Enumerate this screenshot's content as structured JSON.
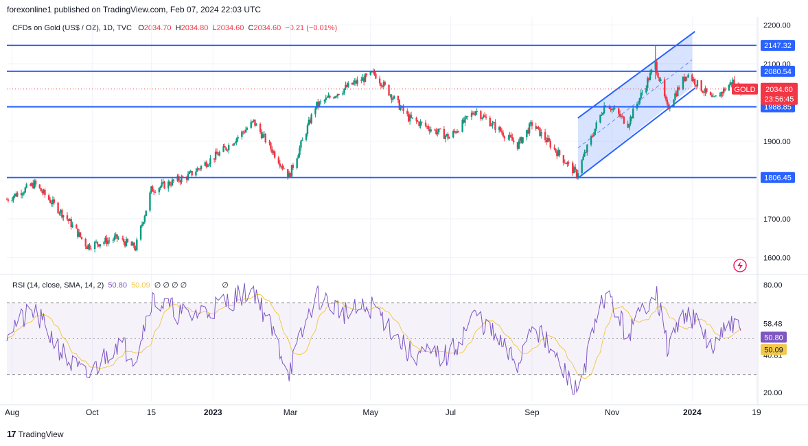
{
  "header": {
    "publisher": "forexonline1 published on TradingView.com, Feb 07, 2024 22:03 UTC"
  },
  "legend": {
    "symbol": "CFDs on Gold (US$ / OZ), 1D, TVC",
    "o_label": "O",
    "o_value": "2034.70",
    "h_label": "H",
    "h_value": "2034.80",
    "l_label": "L",
    "l_value": "2034.60",
    "c_label": "C",
    "c_value": "2034.60",
    "change": "−0.21 (−0.01%)"
  },
  "rsi_legend": {
    "label": "RSI (14, close, SMA, 14, 2)",
    "rsi_value": "50.80",
    "sma_value": "50.09",
    "empty_markers": "∅  ∅  ∅  ∅",
    "marker_single": "∅"
  },
  "price_axis": {
    "ticks": [
      "2200.00",
      "2100.00",
      "1900.00",
      "1700.00",
      "1600.00"
    ],
    "levels": [
      {
        "label": "2147.32",
        "value": 2147.32
      },
      {
        "label": "2080.54",
        "value": 2080.54
      },
      {
        "label": "1988.85",
        "value": 1988.85
      },
      {
        "label": "1806.45",
        "value": 1806.45
      }
    ],
    "gold_tag": "GOLD",
    "last_price": "2034.60",
    "countdown": "23:56:45"
  },
  "rsi_axis": {
    "ticks": [
      "80.00",
      "58.48",
      "40.81",
      "20.00"
    ],
    "rsi_badge": "50.80",
    "sma_badge": "50.09"
  },
  "time_axis": {
    "labels": [
      "Aug",
      "Oct",
      "15",
      "2023",
      "Mar",
      "May",
      "Jul",
      "Sep",
      "Nov",
      "2024",
      "19"
    ]
  },
  "footer": {
    "logo": "17",
    "brand": "TradingView"
  },
  "colors": {
    "up": "#089981",
    "down": "#f23645",
    "level_line": "#2962ff",
    "rsi_line": "#7e57c2",
    "rsi_sma": "#f2c94c",
    "channel_fill": "#2962ff"
  },
  "chart_data": {
    "type": "candlestick",
    "title": "CFDs on Gold (US$ / OZ), 1D, TVC",
    "ylim": [
      1560,
      2220
    ],
    "horizontal_levels": [
      2147.32,
      2080.54,
      1988.85,
      1806.45
    ],
    "last_close": 2034.6,
    "price_path": [
      {
        "date": "2022-07-28",
        "close": 1750
      },
      {
        "date": "2022-08-18",
        "close": 1790
      },
      {
        "date": "2022-09-12",
        "close": 1700
      },
      {
        "date": "2022-09-27",
        "close": 1630
      },
      {
        "date": "2022-10-20",
        "close": 1650
      },
      {
        "date": "2022-11-03",
        "close": 1625
      },
      {
        "date": "2022-11-15",
        "close": 1775
      },
      {
        "date": "2022-12-13",
        "close": 1810
      },
      {
        "date": "2023-01-10",
        "close": 1880
      },
      {
        "date": "2023-02-01",
        "close": 1950
      },
      {
        "date": "2023-02-28",
        "close": 1810
      },
      {
        "date": "2023-03-20",
        "close": 1990
      },
      {
        "date": "2023-04-13",
        "close": 2040
      },
      {
        "date": "2023-05-04",
        "close": 2075
      },
      {
        "date": "2023-05-30",
        "close": 1960
      },
      {
        "date": "2023-06-30",
        "close": 1910
      },
      {
        "date": "2023-07-20",
        "close": 1980
      },
      {
        "date": "2023-08-21",
        "close": 1890
      },
      {
        "date": "2023-09-01",
        "close": 1945
      },
      {
        "date": "2023-10-05",
        "close": 1815
      },
      {
        "date": "2023-10-27",
        "close": 2000
      },
      {
        "date": "2023-11-13",
        "close": 1945
      },
      {
        "date": "2023-12-04",
        "close": 2100
      },
      {
        "date": "2023-12-13",
        "close": 1985
      },
      {
        "date": "2023-12-28",
        "close": 2075
      },
      {
        "date": "2024-01-17",
        "close": 2005
      },
      {
        "date": "2024-02-01",
        "close": 2055
      },
      {
        "date": "2024-02-07",
        "close": 2034.6
      }
    ],
    "rsi": {
      "bands": [
        70,
        50,
        30
      ],
      "ylim": [
        15,
        85
      ],
      "values": [
        {
          "date": "2022-07-28",
          "v": 55
        },
        {
          "date": "2022-08-18",
          "v": 65
        },
        {
          "date": "2022-09-12",
          "v": 38
        },
        {
          "date": "2022-09-27",
          "v": 28
        },
        {
          "date": "2022-10-20",
          "v": 48
        },
        {
          "date": "2022-11-03",
          "v": 40
        },
        {
          "date": "2022-11-15",
          "v": 72
        },
        {
          "date": "2022-12-13",
          "v": 62
        },
        {
          "date": "2023-01-10",
          "v": 70
        },
        {
          "date": "2023-02-01",
          "v": 78
        },
        {
          "date": "2023-02-28",
          "v": 32
        },
        {
          "date": "2023-03-20",
          "v": 74
        },
        {
          "date": "2023-04-13",
          "v": 64
        },
        {
          "date": "2023-05-04",
          "v": 68
        },
        {
          "date": "2023-05-30",
          "v": 42
        },
        {
          "date": "2023-06-30",
          "v": 40
        },
        {
          "date": "2023-07-20",
          "v": 64
        },
        {
          "date": "2023-08-21",
          "v": 35
        },
        {
          "date": "2023-09-01",
          "v": 60
        },
        {
          "date": "2023-10-05",
          "v": 20
        },
        {
          "date": "2023-10-27",
          "v": 76
        },
        {
          "date": "2023-11-13",
          "v": 52
        },
        {
          "date": "2023-12-04",
          "v": 78
        },
        {
          "date": "2023-12-13",
          "v": 45
        },
        {
          "date": "2023-12-28",
          "v": 66
        },
        {
          "date": "2024-01-17",
          "v": 44
        },
        {
          "date": "2024-02-01",
          "v": 60
        },
        {
          "date": "2024-02-07",
          "v": 50.8
        }
      ]
    }
  }
}
